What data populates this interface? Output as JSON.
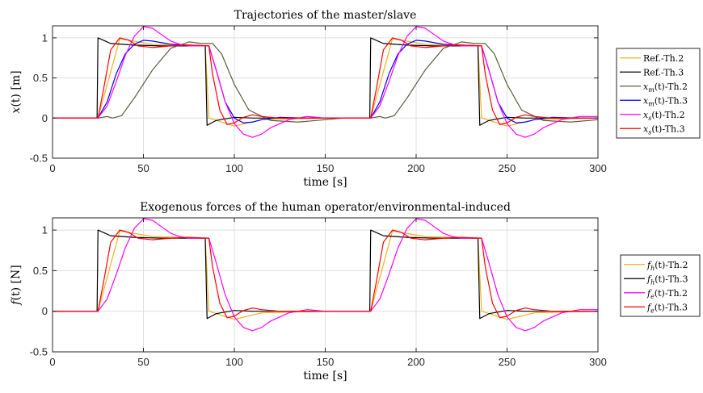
{
  "chart_data": [
    {
      "type": "line",
      "title": "Trajectories of the master/slave",
      "xlabel": "time [s]",
      "ylabel": "x(t) [m]",
      "xlim": [
        0,
        300
      ],
      "ylim": [
        -0.5,
        1.15
      ],
      "xticks": [
        "0",
        "50",
        "100",
        "150",
        "200",
        "250",
        "300"
      ],
      "yticks": [
        "-0.5",
        "0",
        "0.5",
        "1"
      ],
      "grid": true,
      "legend_position": "outside-right",
      "series": [
        {
          "name": "Ref.-Th.2",
          "color": "#EDB120",
          "x": [
            0,
            25,
            37,
            55,
            84,
            86,
            100,
            115,
            150,
            175,
            187,
            205,
            234,
            236,
            250,
            265,
            300
          ],
          "y": [
            0,
            0,
            0.99,
            0.92,
            0.9,
            0,
            -0.1,
            -0.02,
            0,
            0,
            0.99,
            0.92,
            0.9,
            0,
            -0.1,
            -0.02,
            0
          ]
        },
        {
          "name": "Ref.-Th.3",
          "color": "#000000",
          "x": [
            0,
            24.5,
            25,
            32,
            45,
            60,
            84,
            85,
            90,
            100,
            110,
            150,
            174.5,
            175,
            182,
            195,
            210,
            234,
            235,
            240,
            250,
            260,
            300
          ],
          "y": [
            0,
            0,
            1.0,
            0.93,
            0.91,
            0.9,
            0.9,
            -0.09,
            -0.03,
            0.01,
            0,
            0,
            0,
            1.0,
            0.93,
            0.91,
            0.9,
            0.9,
            -0.09,
            -0.03,
            0.01,
            0,
            0
          ]
        },
        {
          "name": "x_m(t)-Th.2",
          "color": "#5B5B3C",
          "x": [
            0,
            25,
            30,
            33,
            38,
            45,
            55,
            65,
            75,
            82,
            88,
            93,
            100,
            108,
            120,
            135,
            150,
            160,
            175,
            180,
            183,
            188,
            195,
            205,
            215,
            225,
            232,
            238,
            243,
            250,
            258,
            270,
            285,
            300
          ],
          "y": [
            0,
            0,
            0.02,
            0.0,
            0.03,
            0.25,
            0.6,
            0.87,
            0.95,
            0.93,
            0.93,
            0.8,
            0.42,
            0.1,
            -0.03,
            -0.05,
            -0.02,
            0,
            0,
            0.02,
            0.0,
            0.03,
            0.25,
            0.6,
            0.87,
            0.95,
            0.93,
            0.93,
            0.8,
            0.42,
            0.1,
            -0.03,
            -0.05,
            -0.02
          ]
        },
        {
          "name": "x_m(t)-Th.3",
          "color": "#0000FF",
          "x": [
            0,
            25,
            30,
            35,
            40,
            45,
            50,
            55,
            65,
            75,
            86,
            90,
            95,
            100,
            105,
            110,
            115,
            125,
            140,
            175,
            180,
            185,
            190,
            195,
            200,
            205,
            215,
            225,
            236,
            240,
            245,
            250,
            255,
            260,
            265,
            275,
            290,
            300
          ],
          "y": [
            0,
            0,
            0.2,
            0.55,
            0.8,
            0.92,
            0.97,
            0.96,
            0.92,
            0.91,
            0.9,
            0.6,
            0.2,
            0.0,
            -0.06,
            -0.05,
            -0.02,
            0.01,
            0,
            0,
            0.2,
            0.55,
            0.8,
            0.92,
            0.97,
            0.96,
            0.92,
            0.91,
            0.9,
            0.6,
            0.2,
            0.0,
            -0.06,
            -0.05,
            -0.02,
            0.01,
            0,
            0
          ]
        },
        {
          "name": "x_s(t)-Th.2",
          "color": "#FF00FF",
          "x": [
            0,
            25,
            30,
            35,
            40,
            45,
            50,
            55,
            60,
            65,
            70,
            75,
            86,
            90,
            95,
            100,
            105,
            110,
            115,
            120,
            130,
            140,
            150,
            175,
            180,
            185,
            190,
            195,
            200,
            205,
            210,
            215,
            220,
            225,
            236,
            240,
            245,
            250,
            255,
            260,
            265,
            270,
            280,
            290,
            300
          ],
          "y": [
            0,
            0,
            0.15,
            0.45,
            0.78,
            1.02,
            1.14,
            1.12,
            1.04,
            0.96,
            0.92,
            0.9,
            0.9,
            0.6,
            0.2,
            -0.07,
            -0.2,
            -0.24,
            -0.2,
            -0.12,
            -0.02,
            0.02,
            0,
            0,
            0.15,
            0.45,
            0.78,
            1.02,
            1.14,
            1.12,
            1.04,
            0.96,
            0.92,
            0.9,
            0.9,
            0.6,
            0.2,
            -0.07,
            -0.2,
            -0.24,
            -0.2,
            -0.12,
            -0.02,
            0.02,
            0.02
          ]
        },
        {
          "name": "x_s(t)-Th.3",
          "color": "#FF0000",
          "x": [
            0,
            25,
            28,
            32,
            37,
            42,
            47,
            55,
            65,
            75,
            86,
            88,
            92,
            96,
            100,
            105,
            110,
            115,
            125,
            175,
            178,
            182,
            187,
            192,
            197,
            205,
            215,
            225,
            236,
            238,
            242,
            246,
            250,
            255,
            260,
            265,
            275,
            300
          ],
          "y": [
            0,
            0,
            0.35,
            0.85,
            1.0,
            0.97,
            0.9,
            0.88,
            0.9,
            0.91,
            0.9,
            0.55,
            0.1,
            -0.08,
            -0.06,
            0.01,
            0.04,
            0.02,
            0,
            0,
            0.35,
            0.85,
            1.0,
            0.97,
            0.9,
            0.88,
            0.9,
            0.91,
            0.9,
            0.55,
            0.1,
            -0.08,
            -0.06,
            0.01,
            0.04,
            0.02,
            0,
            0
          ]
        }
      ]
    },
    {
      "type": "line",
      "title": "Exogenous forces of the human operator/environmental-induced",
      "xlabel": "time [s]",
      "ylabel": "f(t) [N]",
      "xlim": [
        0,
        300
      ],
      "ylim": [
        -0.5,
        1.15
      ],
      "xticks": [
        "0",
        "50",
        "100",
        "150",
        "200",
        "250",
        "300"
      ],
      "yticks": [
        "-0.5",
        "0",
        "0.5",
        "1"
      ],
      "grid": true,
      "legend_position": "outside-right",
      "series": [
        {
          "name": "f_h(t)-Th.2",
          "color": "#EDB120",
          "x": [
            0,
            25,
            37,
            55,
            84,
            86,
            100,
            115,
            150,
            175,
            187,
            205,
            234,
            236,
            250,
            265,
            300
          ],
          "y": [
            0,
            0,
            0.99,
            0.92,
            0.9,
            0,
            -0.1,
            -0.02,
            0,
            0,
            0.99,
            0.92,
            0.9,
            0,
            -0.1,
            -0.02,
            0
          ]
        },
        {
          "name": "f_h(t)-Th.3",
          "color": "#000000",
          "x": [
            0,
            24.5,
            25,
            32,
            45,
            60,
            84,
            85,
            90,
            100,
            110,
            150,
            174.5,
            175,
            182,
            195,
            210,
            234,
            235,
            240,
            250,
            260,
            300
          ],
          "y": [
            0,
            0,
            1.0,
            0.93,
            0.91,
            0.9,
            0.9,
            -0.09,
            -0.03,
            0.01,
            0,
            0,
            0,
            1.0,
            0.93,
            0.91,
            0.9,
            0.9,
            -0.09,
            -0.03,
            0.01,
            0,
            0
          ]
        },
        {
          "name": "f_e(t)-Th.2",
          "color": "#FF00FF",
          "x": [
            0,
            25,
            30,
            35,
            40,
            45,
            50,
            55,
            60,
            65,
            70,
            75,
            86,
            90,
            95,
            100,
            105,
            110,
            115,
            120,
            130,
            140,
            150,
            175,
            180,
            185,
            190,
            195,
            200,
            205,
            210,
            215,
            220,
            225,
            236,
            240,
            245,
            250,
            255,
            260,
            265,
            270,
            280,
            290,
            300
          ],
          "y": [
            0,
            0,
            0.15,
            0.45,
            0.78,
            1.02,
            1.14,
            1.12,
            1.04,
            0.96,
            0.92,
            0.9,
            0.9,
            0.6,
            0.2,
            -0.07,
            -0.2,
            -0.24,
            -0.2,
            -0.12,
            -0.02,
            0.02,
            0,
            0,
            0.15,
            0.45,
            0.78,
            1.02,
            1.14,
            1.12,
            1.04,
            0.96,
            0.92,
            0.9,
            0.9,
            0.6,
            0.2,
            -0.07,
            -0.2,
            -0.24,
            -0.2,
            -0.12,
            -0.02,
            0.02,
            0.02
          ]
        },
        {
          "name": "f_e(t)-Th.3",
          "color": "#FF0000",
          "x": [
            0,
            25,
            28,
            32,
            37,
            42,
            47,
            55,
            65,
            75,
            86,
            88,
            92,
            96,
            100,
            105,
            110,
            115,
            125,
            175,
            178,
            182,
            187,
            192,
            197,
            205,
            215,
            225,
            236,
            238,
            242,
            246,
            250,
            255,
            260,
            265,
            275,
            300
          ],
          "y": [
            0,
            0,
            0.35,
            0.85,
            1.0,
            0.97,
            0.9,
            0.88,
            0.9,
            0.91,
            0.9,
            0.55,
            0.1,
            -0.08,
            -0.06,
            0.01,
            0.04,
            0.02,
            0,
            0,
            0.35,
            0.85,
            1.0,
            0.97,
            0.9,
            0.88,
            0.9,
            0.91,
            0.9,
            0.55,
            0.1,
            -0.08,
            -0.06,
            0.01,
            0.04,
            0.02,
            0,
            0
          ]
        }
      ]
    }
  ]
}
